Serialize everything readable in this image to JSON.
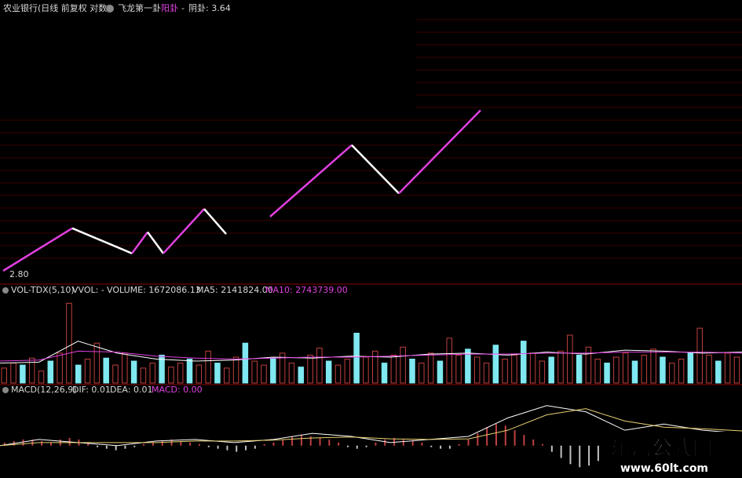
{
  "header": {
    "stock": "农业银行(日线 前复权 对数)",
    "indicator": "飞龙第一卦",
    "yang_label": "阳卦",
    "separator": "-",
    "yin_label": "阴卦: 3.64"
  },
  "price_panel": {
    "low_label": "2.80",
    "ylim": [
      2.8,
      4.2
    ],
    "xlim": [
      0,
      235
    ],
    "zigzag": [
      {
        "color": "#e040e0",
        "x": [
          0,
          22
        ],
        "y": [
          2.8,
          3.02
        ]
      },
      {
        "color": "#ffffff",
        "x": [
          22,
          41
        ],
        "y": [
          3.02,
          2.89
        ]
      },
      {
        "color": "#e040e0",
        "x": [
          41,
          46
        ],
        "y": [
          2.89,
          3.0
        ]
      },
      {
        "color": "#ffffff",
        "x": [
          46,
          51
        ],
        "y": [
          3.0,
          2.89
        ]
      },
      {
        "color": "#e040e0",
        "x": [
          51,
          64
        ],
        "y": [
          2.89,
          3.12
        ]
      },
      {
        "color": "#ffffff",
        "x": [
          64,
          71
        ],
        "y": [
          3.12,
          2.99
        ]
      },
      {
        "color": "#e040e0",
        "x": [
          85,
          111
        ],
        "y": [
          3.08,
          3.45
        ]
      },
      {
        "color": "#ffffff",
        "x": [
          111,
          126
        ],
        "y": [
          3.45,
          3.2
        ]
      },
      {
        "color": "#e040e0",
        "x": [
          126,
          152
        ],
        "y": [
          3.2,
          3.63
        ]
      }
    ]
  },
  "volume_panel": {
    "title": "VOL-TDX(5,10)",
    "vvol": "VVOL: -",
    "volume": "VOLUME: 1672086.13",
    "ma5": "MA5: 2141824.00",
    "ma10": "MA10: 2743739.00",
    "ylim": [
      0,
      8.5
    ],
    "values": [
      1.5,
      2,
      1.8,
      2.5,
      1.2,
      2.2,
      3,
      8,
      1.8,
      2.4,
      4,
      2.5,
      1.8,
      3,
      2.2,
      1.5,
      2,
      2.8,
      1.6,
      2,
      2.4,
      1.8,
      3.2,
      2,
      1.5,
      2.6,
      4,
      2.2,
      1.8,
      2.5,
      3,
      2,
      1.6,
      2.8,
      3.5,
      2.2,
      1.8,
      2.4,
      5,
      2.6,
      3.2,
      2,
      2.8,
      3.6,
      2.4,
      2,
      3,
      2.2,
      4.5,
      2.8,
      3.4,
      2.6,
      2,
      3.8,
      2.4,
      2.8,
      4.2,
      3,
      2.2,
      2.6,
      3.2,
      4.8,
      2.8,
      3.6,
      2.4,
      2,
      2.6,
      3,
      2.2,
      2.8,
      3.4,
      2.6,
      2,
      2.4,
      3,
      5.5,
      2.8,
      2.2,
      3,
      2.6
    ],
    "ma5_line": [
      2,
      2.1,
      4.2,
      3,
      2.4,
      2.2,
      2.3,
      2.6,
      2.5,
      2.7,
      2.6,
      2.9,
      3,
      2.8,
      3.1,
      2.9,
      3.3,
      3.2,
      3,
      3.1
    ],
    "ma10_line": [
      2.2,
      2.3,
      3.2,
      3.1,
      2.7,
      2.5,
      2.4,
      2.5,
      2.6,
      2.6,
      2.7,
      2.8,
      2.9,
      2.9,
      3,
      3,
      3.1,
      3.1,
      3.1,
      3
    ]
  },
  "macd_panel": {
    "title": "MACD(12,26,9)",
    "dif": "DIF: 0.01",
    "dea": "DEA: 0.01",
    "macd": "MACD: 0.00",
    "ylim": [
      -0.1,
      0.16
    ],
    "hist": [
      0.01,
      0.015,
      0.02,
      0.02,
      0.015,
      0.01,
      0.02,
      0.025,
      0.02,
      0.01,
      -0.005,
      -0.01,
      -0.015,
      -0.01,
      -0.005,
      0.005,
      0.01,
      0.015,
      0.02,
      0.015,
      0.01,
      0.005,
      -0.005,
      -0.01,
      -0.015,
      -0.02,
      -0.015,
      -0.01,
      0.005,
      0.01,
      0.02,
      0.03,
      0.035,
      0.03,
      0.025,
      0.02,
      0.01,
      -0.005,
      -0.01,
      -0.005,
      0.01,
      0.02,
      0.025,
      0.02,
      0.015,
      0.01,
      -0.005,
      -0.01,
      -0.01,
      0.005,
      0.02,
      0.04,
      0.06,
      0.07,
      0.065,
      0.05,
      0.035,
      0.02,
      0.005,
      -0.02,
      -0.04,
      -0.06,
      -0.07,
      -0.065,
      -0.05,
      -0.03,
      -0.01,
      0.01,
      0.02,
      0.015,
      0.01,
      0.005,
      -0.005,
      -0.01,
      -0.008,
      -0.005,
      0.003,
      0.005,
      0.004,
      0.002
    ],
    "dif_line": [
      0.0,
      0.02,
      0.01,
      0.0,
      0.015,
      0.02,
      0.01,
      0.02,
      0.04,
      0.03,
      0.01,
      0.02,
      0.03,
      0.09,
      0.13,
      0.11,
      0.05,
      0.07,
      0.05,
      0.04
    ],
    "dea_line": [
      0.0,
      0.01,
      0.01,
      0.01,
      0.01,
      0.015,
      0.015,
      0.018,
      0.025,
      0.028,
      0.022,
      0.02,
      0.022,
      0.05,
      0.1,
      0.12,
      0.08,
      0.06,
      0.055,
      0.048
    ]
  },
  "watermark": {
    "name": "乐淘公式网",
    "url": "www.60lt.com"
  }
}
